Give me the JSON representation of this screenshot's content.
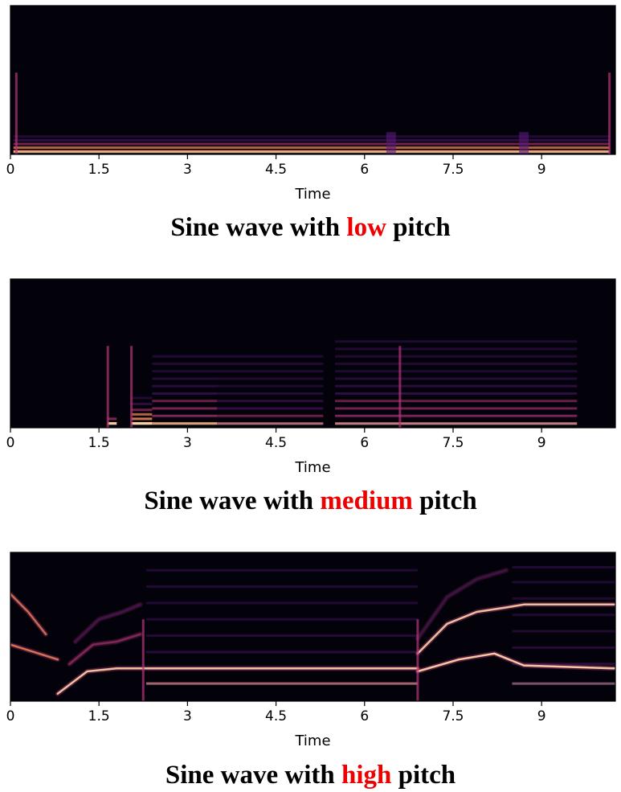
{
  "colors": {
    "background": "#03020a",
    "band_low": "#5a1a7a",
    "band_mid": "#b8367a",
    "band_high": "#f58a5a",
    "band_peak": "#fcd3a8",
    "caption_accent": "#ee0000"
  },
  "chart_data": [
    {
      "type": "heatmap",
      "title": "",
      "caption": {
        "prefix": "Sine wave with ",
        "highlight": "low",
        "suffix": " pitch"
      },
      "xlabel": "Time",
      "ylabel": "",
      "xlim": [
        0,
        10.25
      ],
      "xticks": [
        0,
        1.5,
        3,
        4.5,
        6,
        7.5,
        9
      ],
      "xtick_labels": [
        "0",
        "1.5",
        "3",
        "4.5",
        "6",
        "7.5",
        "9"
      ],
      "grid": false,
      "segments": [
        {
          "start": 0.05,
          "end": 10.15,
          "harmonics": [
            0.02,
            0.045,
            0.07,
            0.095,
            0.12
          ],
          "intensity": 0.85
        }
      ],
      "spikes": [
        0.1,
        10.15
      ],
      "events": [
        6.45,
        8.7
      ]
    },
    {
      "type": "heatmap",
      "title": "",
      "caption": {
        "prefix": "Sine wave with ",
        "highlight": "medium",
        "suffix": " pitch"
      },
      "xlabel": "Time",
      "ylabel": "",
      "xlim": [
        0,
        10.25
      ],
      "xticks": [
        0,
        1.5,
        3,
        4.5,
        6,
        7.5,
        9
      ],
      "xtick_labels": [
        "0",
        "1.5",
        "3",
        "4.5",
        "6",
        "7.5",
        "9"
      ],
      "grid": false,
      "segments": [
        {
          "start": 1.65,
          "end": 1.8,
          "harmonics": [
            0.03,
            0.06
          ],
          "intensity": 0.9
        },
        {
          "start": 2.05,
          "end": 2.4,
          "harmonics": [
            0.03,
            0.06,
            0.09,
            0.12,
            0.16,
            0.2
          ],
          "intensity": 0.95
        },
        {
          "start": 2.4,
          "end": 3.5,
          "harmonics": [
            0.03,
            0.08,
            0.13,
            0.18,
            0.23,
            0.28,
            0.33,
            0.38,
            0.43,
            0.48
          ],
          "intensity": 0.75
        },
        {
          "start": 3.5,
          "end": 5.3,
          "harmonics": [
            0.03,
            0.08,
            0.13,
            0.18,
            0.23,
            0.28,
            0.33,
            0.38,
            0.43,
            0.48
          ],
          "intensity": 0.6
        },
        {
          "start": 5.5,
          "end": 9.6,
          "harmonics": [
            0.03,
            0.08,
            0.13,
            0.18,
            0.23,
            0.28,
            0.33,
            0.38,
            0.43,
            0.48,
            0.53,
            0.58
          ],
          "intensity": 0.7
        }
      ],
      "spikes": [
        1.65,
        2.05,
        6.6
      ],
      "events": []
    },
    {
      "type": "heatmap",
      "title": "",
      "caption": {
        "prefix": "Sine wave with ",
        "highlight": "high",
        "suffix": " pitch"
      },
      "xlabel": "Time",
      "ylabel": "",
      "xlim": [
        0,
        10.25
      ],
      "xticks": [
        0,
        1.5,
        3,
        4.5,
        6,
        7.5,
        9
      ],
      "xtick_labels": [
        "0",
        "1.5",
        "3",
        "4.5",
        "6",
        "7.5",
        "9"
      ],
      "grid": false,
      "segments": [
        {
          "start": 2.3,
          "end": 6.9,
          "harmonics": [
            0.12,
            0.22,
            0.33,
            0.44,
            0.55,
            0.66,
            0.77,
            0.88
          ],
          "intensity": 0.55
        },
        {
          "start": 8.5,
          "end": 10.25,
          "harmonics": [
            0.12,
            0.25,
            0.36,
            0.47,
            0.58,
            0.69,
            0.8,
            0.9
          ],
          "intensity": 0.5
        }
      ],
      "curves": [
        {
          "points": [
            [
              0,
              0.72
            ],
            [
              0.3,
              0.6
            ],
            [
              0.6,
              0.45
            ]
          ],
          "intensity": 0.75
        },
        {
          "points": [
            [
              0,
              0.38
            ],
            [
              0.4,
              0.33
            ],
            [
              0.8,
              0.28
            ]
          ],
          "intensity": 0.8
        },
        {
          "points": [
            [
              0.8,
              0.05
            ],
            [
              1.3,
              0.2
            ],
            [
              1.8,
              0.22
            ],
            [
              2.3,
              0.22
            ],
            [
              3.5,
              0.22
            ],
            [
              6.9,
              0.22
            ]
          ],
          "intensity": 0.9
        },
        {
          "points": [
            [
              1.0,
              0.25
            ],
            [
              1.4,
              0.38
            ],
            [
              1.8,
              0.4
            ],
            [
              2.2,
              0.45
            ]
          ],
          "intensity": 0.6
        },
        {
          "points": [
            [
              1.1,
              0.4
            ],
            [
              1.5,
              0.55
            ],
            [
              1.9,
              0.6
            ],
            [
              2.2,
              0.65
            ]
          ],
          "intensity": 0.5
        },
        {
          "points": [
            [
              6.9,
              0.2
            ],
            [
              7.6,
              0.28
            ],
            [
              8.2,
              0.32
            ],
            [
              8.7,
              0.24
            ],
            [
              10.25,
              0.22
            ]
          ],
          "intensity": 0.95
        },
        {
          "points": [
            [
              6.9,
              0.32
            ],
            [
              7.4,
              0.52
            ],
            [
              7.9,
              0.6
            ],
            [
              8.4,
              0.63
            ],
            [
              8.7,
              0.65
            ],
            [
              10.25,
              0.65
            ]
          ],
          "intensity": 0.9
        },
        {
          "points": [
            [
              6.9,
              0.42
            ],
            [
              7.4,
              0.7
            ],
            [
              7.9,
              0.82
            ],
            [
              8.4,
              0.88
            ]
          ],
          "intensity": 0.45
        }
      ],
      "spikes": [
        2.25,
        6.9
      ],
      "events": []
    }
  ]
}
